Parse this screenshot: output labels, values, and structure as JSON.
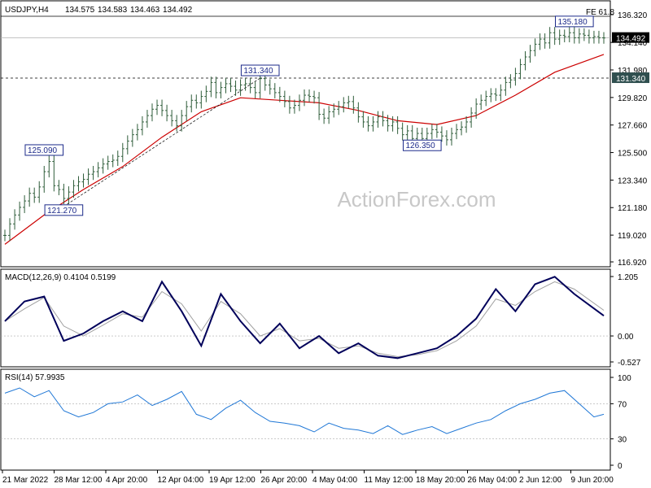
{
  "chart_data": [
    {
      "type": "line",
      "panel": "price",
      "symbol_label": "USDJPY,H4",
      "ohlc": {
        "open": "134.575",
        "high": "134.583",
        "low": "134.463",
        "close": "134.492"
      },
      "y_ticks": [
        "136.320",
        "134.140",
        "131.980",
        "129.820",
        "127.660",
        "125.500",
        "123.340",
        "121.180",
        "119.020",
        "116.920"
      ],
      "ylim": [
        116.92,
        136.32
      ],
      "fib_label": "FE 61.8",
      "fib_level": 136.8,
      "current_price": "134.492",
      "support_level": 131.34,
      "support_label": "131.340",
      "annotations": [
        {
          "text": "125.090",
          "x": 8,
          "y": 125.09
        },
        {
          "text": "121.270",
          "x": 12,
          "y": 121.27
        },
        {
          "text": "131.340",
          "x": 52,
          "y": 131.34
        },
        {
          "text": "126.350",
          "x": 85,
          "y": 126.35
        },
        {
          "text": "135.180",
          "x": 116,
          "y": 135.18
        }
      ],
      "series": [
        {
          "kind": "price",
          "color": "#2f5d3a",
          "x": [
            0,
            1,
            2,
            3,
            4,
            5,
            6,
            7,
            8,
            9,
            10,
            11,
            12,
            13,
            14,
            15,
            16,
            17,
            18,
            19,
            20,
            21,
            22,
            23,
            24,
            25,
            26,
            27,
            28,
            29,
            30,
            31,
            32,
            33,
            34,
            35,
            36,
            37,
            38,
            39,
            40,
            41,
            42,
            43,
            44,
            45,
            46,
            47,
            48,
            49,
            50,
            51,
            52,
            53,
            54,
            55,
            56,
            57,
            58,
            59,
            60,
            61,
            62,
            63,
            64,
            65,
            66,
            67,
            68,
            69,
            70,
            71,
            72,
            73,
            74,
            75,
            76,
            77,
            78,
            79,
            80,
            81,
            82,
            83,
            84,
            85,
            86,
            87,
            88,
            89,
            90,
            91,
            92,
            93,
            94,
            95,
            96,
            97,
            98,
            99,
            100,
            101,
            102,
            103,
            104,
            105,
            106,
            107,
            108,
            109,
            110,
            111,
            112,
            113,
            114,
            115,
            116,
            117,
            118,
            119,
            120,
            121,
            122
          ],
          "y": [
            119.0,
            119.9,
            120.6,
            121.2,
            121.7,
            122.3,
            122.0,
            122.8,
            124.0,
            124.8,
            122.9,
            122.6,
            121.9,
            122.4,
            122.9,
            123.2,
            123.4,
            123.8,
            124.0,
            124.3,
            124.6,
            124.8,
            124.9,
            125.2,
            125.8,
            126.4,
            126.9,
            127.3,
            127.9,
            128.4,
            128.9,
            129.2,
            128.8,
            128.4,
            128.0,
            127.6,
            128.4,
            129.1,
            129.6,
            129.4,
            129.9,
            130.3,
            131.0,
            130.2,
            130.6,
            130.9,
            130.7,
            130.4,
            130.8,
            130.9,
            130.6,
            130.2,
            131.3,
            130.8,
            130.5,
            130.2,
            129.9,
            129.5,
            129.0,
            129.2,
            129.6,
            130.0,
            129.9,
            129.8,
            128.5,
            128.2,
            128.7,
            128.9,
            129.1,
            129.4,
            129.5,
            129.0,
            128.3,
            127.9,
            127.6,
            127.9,
            128.3,
            128.0,
            127.6,
            127.9,
            127.4,
            126.9,
            127.2,
            126.6,
            127.0,
            126.6,
            127.0,
            127.3,
            127.1,
            126.8,
            126.5,
            127.0,
            127.3,
            127.5,
            127.9,
            128.6,
            129.3,
            129.6,
            129.9,
            130.1,
            130.0,
            130.4,
            131.0,
            131.2,
            131.7,
            132.4,
            133.0,
            133.5,
            134.0,
            134.4,
            134.1,
            134.9,
            134.4,
            134.7,
            134.6,
            134.9,
            134.5,
            134.8,
            134.7,
            134.5,
            134.6,
            134.5,
            134.49
          ]
        },
        {
          "kind": "moving-average",
          "color": "#cc0000",
          "x": [
            0,
            8,
            16,
            24,
            32,
            40,
            48,
            56,
            64,
            72,
            80,
            88,
            96,
            104,
            112,
            122
          ],
          "y": [
            118.3,
            120.6,
            122.6,
            124.4,
            126.7,
            128.7,
            129.8,
            129.6,
            129.4,
            128.8,
            128.0,
            127.7,
            128.4,
            130.0,
            131.8,
            133.2
          ]
        }
      ],
      "x_ticks": [
        "21 Mar 2022",
        "28 Mar 12:00",
        "4 Apr 20:00",
        "12 Apr 04:00",
        "19 Apr 12:00",
        "26 Apr 20:00",
        "4 May 04:00",
        "11 May 12:00",
        "18 May 20:00",
        "26 May 04:00",
        "2 Jun 12:00",
        "9 Jun 20:00"
      ]
    },
    {
      "type": "line",
      "panel": "macd",
      "label": "MACD(12,26,9) 0.4104 0.5199",
      "y_ticks": [
        "1.205",
        "0.00",
        "-0.527"
      ],
      "ylim": [
        -0.527,
        1.205
      ],
      "series": [
        {
          "kind": "macd",
          "color": "#00005a",
          "x": [
            0,
            4,
            8,
            12,
            16,
            20,
            24,
            28,
            32,
            36,
            40,
            44,
            48,
            52,
            56,
            60,
            64,
            68,
            72,
            76,
            80,
            84,
            88,
            92,
            96,
            100,
            104,
            108,
            112,
            116,
            122
          ],
          "y": [
            0.3,
            0.7,
            0.8,
            -0.1,
            0.05,
            0.3,
            0.5,
            0.3,
            1.1,
            0.5,
            -0.2,
            0.85,
            0.3,
            -0.15,
            0.25,
            -0.25,
            0.0,
            -0.35,
            -0.15,
            -0.4,
            -0.45,
            -0.35,
            -0.25,
            0.0,
            0.35,
            0.95,
            0.5,
            1.05,
            1.2,
            0.85,
            0.41
          ]
        },
        {
          "kind": "signal",
          "color": "#a0a0a0",
          "x": [
            0,
            4,
            8,
            12,
            16,
            20,
            24,
            28,
            32,
            36,
            40,
            44,
            48,
            52,
            56,
            60,
            64,
            68,
            72,
            76,
            80,
            84,
            88,
            92,
            96,
            100,
            104,
            108,
            112,
            116,
            122
          ],
          "y": [
            0.3,
            0.55,
            0.78,
            0.2,
            0.0,
            0.22,
            0.45,
            0.38,
            0.9,
            0.65,
            0.1,
            0.7,
            0.45,
            0.0,
            0.15,
            -0.1,
            -0.05,
            -0.25,
            -0.2,
            -0.35,
            -0.42,
            -0.38,
            -0.3,
            -0.1,
            0.2,
            0.75,
            0.62,
            0.9,
            1.1,
            0.95,
            0.52
          ]
        }
      ]
    },
    {
      "type": "line",
      "panel": "rsi",
      "label": "RSI(14) 57.9935",
      "y_ticks": [
        "100",
        "70",
        "30",
        "0"
      ],
      "ylim": [
        0,
        100
      ],
      "series": [
        {
          "kind": "rsi",
          "color": "#1f77d6",
          "x": [
            0,
            3,
            6,
            9,
            12,
            15,
            18,
            21,
            24,
            27,
            30,
            33,
            36,
            39,
            42,
            45,
            48,
            51,
            54,
            57,
            60,
            63,
            66,
            69,
            72,
            75,
            78,
            81,
            84,
            87,
            90,
            93,
            96,
            99,
            102,
            105,
            108,
            111,
            114,
            117,
            120,
            122
          ],
          "y": [
            82,
            88,
            78,
            85,
            62,
            55,
            60,
            70,
            72,
            80,
            68,
            75,
            84,
            58,
            52,
            65,
            74,
            60,
            50,
            48,
            45,
            38,
            48,
            42,
            40,
            36,
            45,
            35,
            40,
            44,
            36,
            42,
            48,
            52,
            62,
            70,
            75,
            82,
            85,
            70,
            55,
            58
          ]
        }
      ]
    }
  ],
  "watermark": "ActionForex.com"
}
